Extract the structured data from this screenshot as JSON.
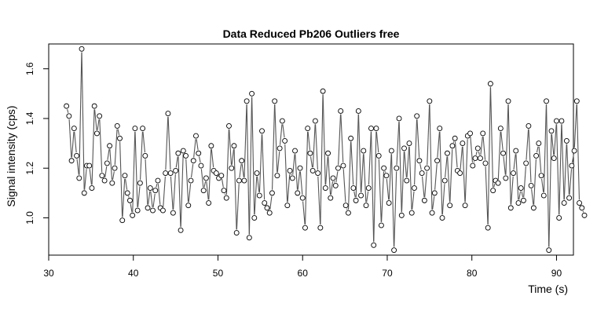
{
  "chart_data": {
    "type": "line",
    "title": "Data Reduced Pb206 Outliers free",
    "xlabel": "Time (s)",
    "ylabel": "Signal intensity (cps)",
    "xlim": [
      30,
      92
    ],
    "ylim": [
      0.85,
      1.7
    ],
    "x_ticks": [
      30,
      40,
      50,
      60,
      70,
      80,
      90
    ],
    "y_ticks": [
      1.0,
      1.2,
      1.4,
      1.6
    ],
    "grid": false,
    "point_marker": "open-circle",
    "line_style": "gaps-between-points",
    "colors": {
      "line": "#555555",
      "points": "#000000"
    },
    "x_start": 32.1,
    "x_step": 0.3,
    "values": [
      1.45,
      1.41,
      1.23,
      1.36,
      1.25,
      1.16,
      1.68,
      1.1,
      1.21,
      1.21,
      1.12,
      1.45,
      1.34,
      1.41,
      1.17,
      1.15,
      1.22,
      1.29,
      1.14,
      1.2,
      1.37,
      1.32,
      0.99,
      1.17,
      1.1,
      1.07,
      1.01,
      1.36,
      1.03,
      1.14,
      1.36,
      1.25,
      1.04,
      1.12,
      1.03,
      1.11,
      1.15,
      1.04,
      1.03,
      1.18,
      1.42,
      1.18,
      1.02,
      1.19,
      1.26,
      0.95,
      1.27,
      1.25,
      1.05,
      1.15,
      1.23,
      1.33,
      1.26,
      1.21,
      1.11,
      1.16,
      1.06,
      1.29,
      1.19,
      1.18,
      1.16,
      1.17,
      1.11,
      1.08,
      1.37,
      1.2,
      1.29,
      0.94,
      1.15,
      1.23,
      1.15,
      1.47,
      0.92,
      1.5,
      1.0,
      1.18,
      1.09,
      1.35,
      1.06,
      1.04,
      1.02,
      1.1,
      1.47,
      1.17,
      1.28,
      1.39,
      1.31,
      1.05,
      1.19,
      1.16,
      1.27,
      1.1,
      1.2,
      1.08,
      0.96,
      1.36,
      1.26,
      1.19,
      1.39,
      1.18,
      0.96,
      1.51,
      1.12,
      1.26,
      1.08,
      1.16,
      1.13,
      1.2,
      1.43,
      1.21,
      1.05,
      1.02,
      1.32,
      1.12,
      1.07,
      1.43,
      1.09,
      1.27,
      1.05,
      1.12,
      1.36,
      0.89,
      1.36,
      1.25,
      0.97,
      1.2,
      1.17,
      1.06,
      1.27,
      0.87,
      1.2,
      1.4,
      1.01,
      1.28,
      1.15,
      1.3,
      1.02,
      1.12,
      1.41,
      1.23,
      1.18,
      1.07,
      1.2,
      1.47,
      1.02,
      1.1,
      1.23,
      1.36,
      1.0,
      1.15,
      1.26,
      1.05,
      1.29,
      1.32,
      1.19,
      1.18,
      1.3,
      1.05,
      1.33,
      1.34,
      1.21,
      1.24,
      1.28,
      1.24,
      1.34,
      1.22,
      0.96,
      1.54,
      1.11,
      1.15,
      1.14,
      1.36,
      1.26,
      1.16,
      1.47,
      1.04,
      1.18,
      1.27,
      1.06,
      1.12,
      1.07,
      1.22,
      1.37,
      1.13,
      1.04,
      1.25,
      1.3,
      1.17,
      1.09,
      1.47,
      0.87,
      1.35,
      1.24,
      1.39,
      1.0,
      1.39,
      1.06,
      1.31,
      1.08,
      1.21,
      1.27,
      1.47,
      1.06,
      1.04,
      1.01
    ]
  }
}
